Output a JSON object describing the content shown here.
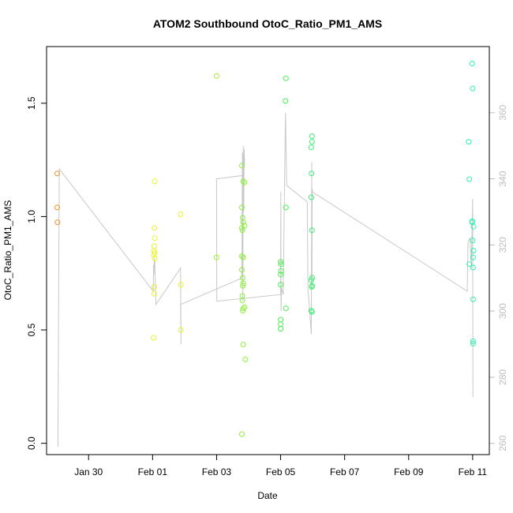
{
  "chart_data": {
    "type": "scatter",
    "title": "ATOM2 Southbound OtoC_Ratio_PM1_AMS",
    "xlabel": "Date",
    "ylabel": "OtoC_Ratio_PM1_AMS",
    "x_unit": "days",
    "xlim": [
      "Jan 28 16:30",
      "Feb 11 12:30"
    ],
    "ylim": [
      -0.05,
      1.75
    ],
    "x_ticks": [
      "Jan 30",
      "Feb 01",
      "Feb 03",
      "Feb 05",
      "Feb 07",
      "Feb 09",
      "Feb 11"
    ],
    "y_ticks": [
      "0.0",
      "0.5",
      "1.0",
      "1.5"
    ],
    "y2_ticks": [
      "260",
      "280",
      "300",
      "320",
      "340",
      "360"
    ],
    "y2lim": [
      256.6,
      380
    ],
    "grid": false,
    "points": [
      {
        "x": "Jan 29 00:30",
        "y": 1.19,
        "color": "#f0902c"
      },
      {
        "x": "Jan 29 00:30",
        "y": 1.04,
        "color": "#f0902c"
      },
      {
        "x": "Jan 29 00:40",
        "y": 0.975,
        "color": "#f0902c"
      },
      {
        "x": "Feb 01 00:50",
        "y": 0.465,
        "color": "#e8f32a"
      },
      {
        "x": "Feb 01 01:30",
        "y": 1.155,
        "color": "#e8f32a"
      },
      {
        "x": "Feb 01 01:00",
        "y": 0.85,
        "color": "#e8f32a"
      },
      {
        "x": "Feb 01 01:00",
        "y": 0.83,
        "color": "#e8f32a"
      },
      {
        "x": "Feb 01 01:10",
        "y": 0.87,
        "color": "#e8f32a"
      },
      {
        "x": "Feb 01 01:20",
        "y": 0.95,
        "color": "#e8f32a"
      },
      {
        "x": "Feb 01 01:40",
        "y": 0.905,
        "color": "#e8f32a"
      },
      {
        "x": "Feb 01 01:30",
        "y": 0.84,
        "color": "#e8f32a"
      },
      {
        "x": "Feb 01 01:40",
        "y": 0.815,
        "color": "#e8f32a"
      },
      {
        "x": "Feb 01 01:10",
        "y": 0.69,
        "color": "#e8f32a"
      },
      {
        "x": "Feb 01 01:10",
        "y": 0.66,
        "color": "#e8f32a"
      },
      {
        "x": "Feb 01 21:00",
        "y": 1.01,
        "color": "#e8f32a"
      },
      {
        "x": "Feb 01 21:10",
        "y": 0.7,
        "color": "#e8f32a"
      },
      {
        "x": "Feb 01 21:10",
        "y": 0.5,
        "color": "#e8f32a"
      },
      {
        "x": "Feb 03 00:00",
        "y": 1.62,
        "color": "#a4ef30"
      },
      {
        "x": "Feb 03 00:00",
        "y": 0.82,
        "color": "#a4ef30"
      },
      {
        "x": "Feb 03 19:00",
        "y": 1.225,
        "color": "#8cf03a"
      },
      {
        "x": "Feb 03 20:00",
        "y": 1.155,
        "color": "#8cf03a"
      },
      {
        "x": "Feb 03 21:00",
        "y": 1.15,
        "color": "#8cf03a"
      },
      {
        "x": "Feb 03 19:00",
        "y": 1.04,
        "color": "#8cf03a"
      },
      {
        "x": "Feb 03 19:30",
        "y": 0.995,
        "color": "#8cf03a"
      },
      {
        "x": "Feb 03 20:00",
        "y": 0.975,
        "color": "#8cf03a"
      },
      {
        "x": "Feb 03 19:00",
        "y": 0.95,
        "color": "#8cf03a"
      },
      {
        "x": "Feb 03 19:20",
        "y": 0.94,
        "color": "#8cf03a"
      },
      {
        "x": "Feb 03 21:00",
        "y": 0.96,
        "color": "#8cf03a"
      },
      {
        "x": "Feb 03 19:00",
        "y": 0.825,
        "color": "#8cf03a"
      },
      {
        "x": "Feb 03 20:00",
        "y": 0.82,
        "color": "#8cf03a"
      },
      {
        "x": "Feb 03 19:00",
        "y": 0.765,
        "color": "#8cf03a"
      },
      {
        "x": "Feb 03 19:30",
        "y": 0.73,
        "color": "#8cf03a"
      },
      {
        "x": "Feb 03 20:00",
        "y": 0.705,
        "color": "#8cf03a"
      },
      {
        "x": "Feb 03 19:40",
        "y": 0.695,
        "color": "#8cf03a"
      },
      {
        "x": "Feb 03 19:20",
        "y": 0.65,
        "color": "#8cf03a"
      },
      {
        "x": "Feb 03 19:20",
        "y": 0.63,
        "color": "#8cf03a"
      },
      {
        "x": "Feb 03 21:00",
        "y": 0.6,
        "color": "#8cf03a"
      },
      {
        "x": "Feb 03 20:00",
        "y": 0.595,
        "color": "#8cf03a"
      },
      {
        "x": "Feb 03 19:40",
        "y": 0.585,
        "color": "#8cf03a"
      },
      {
        "x": "Feb 03 20:00",
        "y": 0.435,
        "color": "#8cf03a"
      },
      {
        "x": "Feb 03 21:30",
        "y": 0.37,
        "color": "#8cf03a"
      },
      {
        "x": "Feb 03 19:00",
        "y": 0.04,
        "color": "#8cf03a"
      },
      {
        "x": "Feb 05 04:00",
        "y": 1.61,
        "color": "#4cf050"
      },
      {
        "x": "Feb 05 03:40",
        "y": 1.51,
        "color": "#4cf050"
      },
      {
        "x": "Feb 05 04:00",
        "y": 1.04,
        "color": "#4cf050"
      },
      {
        "x": "Feb 05 00:00",
        "y": 0.8,
        "color": "#4cf050"
      },
      {
        "x": "Feb 05 00:20",
        "y": 0.79,
        "color": "#4cf050"
      },
      {
        "x": "Feb 05 00:20",
        "y": 0.76,
        "color": "#4cf050"
      },
      {
        "x": "Feb 05 00:00",
        "y": 0.745,
        "color": "#4cf050"
      },
      {
        "x": "Feb 05 00:00",
        "y": 0.7,
        "color": "#4cf050"
      },
      {
        "x": "Feb 05 04:00",
        "y": 0.595,
        "color": "#4cf050"
      },
      {
        "x": "Feb 05 00:00",
        "y": 0.545,
        "color": "#4cf050"
      },
      {
        "x": "Feb 05 00:00",
        "y": 0.525,
        "color": "#4cf050"
      },
      {
        "x": "Feb 05 00:00",
        "y": 0.505,
        "color": "#4cf050"
      },
      {
        "x": "Feb 05 23:30",
        "y": 1.355,
        "color": "#3cf070"
      },
      {
        "x": "Feb 05 23:30",
        "y": 1.33,
        "color": "#3cf070"
      },
      {
        "x": "Feb 05 23:00",
        "y": 1.305,
        "color": "#3cf070"
      },
      {
        "x": "Feb 05 23:10",
        "y": 1.19,
        "color": "#3cf070"
      },
      {
        "x": "Feb 05 23:00",
        "y": 1.085,
        "color": "#3cf070"
      },
      {
        "x": "Feb 05 23:30",
        "y": 0.94,
        "color": "#3cf070"
      },
      {
        "x": "Feb 05 23:40",
        "y": 0.73,
        "color": "#3cf070"
      },
      {
        "x": "Feb 05 23:00",
        "y": 0.72,
        "color": "#3cf070"
      },
      {
        "x": "Feb 05 23:40",
        "y": 0.695,
        "color": "#3cf070"
      },
      {
        "x": "Feb 05 23:20",
        "y": 0.69,
        "color": "#3cf070"
      },
      {
        "x": "Feb 05 23:00",
        "y": 0.585,
        "color": "#3cf070"
      },
      {
        "x": "Feb 05 23:30",
        "y": 0.58,
        "color": "#3cf070"
      },
      {
        "x": "Feb 10 23:40",
        "y": 1.675,
        "color": "#30f0b0"
      },
      {
        "x": "Feb 11 00:00",
        "y": 1.565,
        "color": "#30f0b0"
      },
      {
        "x": "Feb 10 21:00",
        "y": 1.33,
        "color": "#30f0b0"
      },
      {
        "x": "Feb 10 21:30",
        "y": 1.165,
        "color": "#30f0b0"
      },
      {
        "x": "Feb 10 23:40",
        "y": 0.98,
        "color": "#30f0b0"
      },
      {
        "x": "Feb 10 23:40",
        "y": 0.975,
        "color": "#30f0b0"
      },
      {
        "x": "Feb 11 00:40",
        "y": 0.955,
        "color": "#30f0b0"
      },
      {
        "x": "Feb 11 00:00",
        "y": 0.895,
        "color": "#30f0b0"
      },
      {
        "x": "Feb 11 00:40",
        "y": 0.85,
        "color": "#30f0b0"
      },
      {
        "x": "Feb 11 00:20",
        "y": 0.82,
        "color": "#30f0b0"
      },
      {
        "x": "Feb 10 21:30",
        "y": 0.79,
        "color": "#30f0b0"
      },
      {
        "x": "Feb 11 00:20",
        "y": 0.775,
        "color": "#30f0b0"
      },
      {
        "x": "Feb 11 00:20",
        "y": 0.635,
        "color": "#30f0b0"
      },
      {
        "x": "Feb 11 00:20",
        "y": 0.45,
        "color": "#30f0b0"
      },
      {
        "x": "Feb 11 00:20",
        "y": 0.44,
        "color": "#30f0b0"
      }
    ],
    "secondary_line": {
      "color": "#c8c8c8",
      "axis": "right",
      "points": [
        {
          "x": "Jan 29 01:00",
          "y": 259
        },
        {
          "x": "Jan 29 02:00",
          "y": 343
        },
        {
          "x": "Feb 01 00:30",
          "y": 306
        },
        {
          "x": "Feb 01 00:40",
          "y": 314
        },
        {
          "x": "Feb 01 01:00",
          "y": 311
        },
        {
          "x": "Feb 01 01:20",
          "y": 316
        },
        {
          "x": "Feb 01 01:40",
          "y": 314
        },
        {
          "x": "Feb 01 02:30",
          "y": 302
        },
        {
          "x": "Feb 01 21:00",
          "y": 313
        },
        {
          "x": "Feb 01 21:20",
          "y": 290
        },
        {
          "x": "Feb 01 21:00",
          "y": 302
        },
        {
          "x": "Feb 03 19:00",
          "y": 310
        },
        {
          "x": "Feb 03 19:20",
          "y": 348
        },
        {
          "x": "Feb 03 19:40",
          "y": 303
        },
        {
          "x": "Feb 03 20:00",
          "y": 350
        },
        {
          "x": "Feb 03 20:20",
          "y": 330
        },
        {
          "x": "Feb 03 20:40",
          "y": 349
        },
        {
          "x": "Feb 03 21:00",
          "y": 345
        },
        {
          "x": "Feb 03 19:30",
          "y": 341
        },
        {
          "x": "Feb 03 00:00",
          "y": 340
        },
        {
          "x": "Feb 03 00:10",
          "y": 303
        },
        {
          "x": "Feb 05 00:00",
          "y": 305
        },
        {
          "x": "Feb 05 00:10",
          "y": 336
        },
        {
          "x": "Feb 05 00:20",
          "y": 300
        },
        {
          "x": "Feb 05 00:40",
          "y": 307
        },
        {
          "x": "Feb 05 02:00",
          "y": 305
        },
        {
          "x": "Feb 05 03:00",
          "y": 340
        },
        {
          "x": "Feb 05 03:40",
          "y": 360
        },
        {
          "x": "Feb 05 04:30",
          "y": 338
        },
        {
          "x": "Feb 05 20:00",
          "y": 333
        },
        {
          "x": "Feb 05 20:30",
          "y": 307
        },
        {
          "x": "Feb 05 23:00",
          "y": 293
        },
        {
          "x": "Feb 05 23:20",
          "y": 345
        },
        {
          "x": "Feb 05 23:30",
          "y": 307
        },
        {
          "x": "Feb 05 23:40",
          "y": 337
        },
        {
          "x": "Feb 06 00:00",
          "y": 336
        },
        {
          "x": "Feb 10 20:00",
          "y": 306
        },
        {
          "x": "Feb 10 20:30",
          "y": 321
        },
        {
          "x": "Feb 10 22:00",
          "y": 322
        },
        {
          "x": "Feb 10 23:00",
          "y": 313
        },
        {
          "x": "Feb 11 00:00",
          "y": 334
        },
        {
          "x": "Feb 11 00:10",
          "y": 274
        }
      ]
    }
  }
}
